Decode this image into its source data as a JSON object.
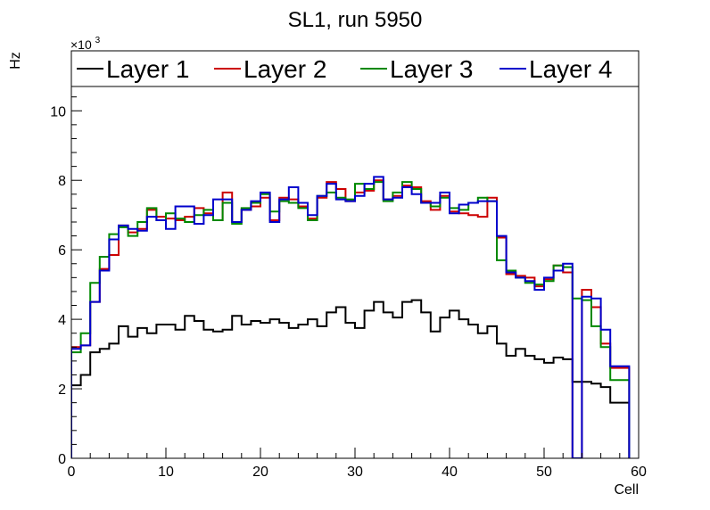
{
  "chart_data": {
    "type": "line",
    "title": "SL1, run 5950",
    "xlabel": "Cell",
    "ylabel": "Hz",
    "y_multiplier_base": "×10",
    "y_multiplier_exp": "3",
    "xlim": [
      0,
      60
    ],
    "ylim": [
      0,
      10.7
    ],
    "x_ticks": [
      0,
      10,
      20,
      30,
      40,
      50,
      60
    ],
    "y_ticks": [
      0,
      2,
      4,
      6,
      8,
      10
    ],
    "legend_position": "top",
    "bin_width": 1,
    "series": [
      {
        "name": "Layer 1",
        "color": "#000000",
        "values": [
          2.1,
          2.4,
          3.05,
          3.15,
          3.3,
          3.8,
          3.5,
          3.75,
          3.6,
          3.85,
          3.85,
          3.7,
          4.1,
          3.95,
          3.7,
          3.65,
          3.7,
          4.1,
          3.85,
          3.95,
          3.9,
          4.0,
          3.9,
          3.75,
          3.85,
          4.0,
          3.8,
          4.2,
          4.35,
          3.9,
          3.75,
          4.25,
          4.5,
          4.2,
          4.05,
          4.5,
          4.55,
          4.2,
          3.65,
          4.05,
          4.25,
          4.0,
          3.85,
          3.6,
          3.8,
          3.3,
          2.95,
          3.15,
          2.95,
          2.85,
          2.75,
          2.9,
          2.85,
          2.2,
          2.2,
          2.15,
          2.05,
          1.6,
          1.6
        ]
      },
      {
        "name": "Layer 2",
        "color": "#cc0000",
        "values": [
          3.2,
          3.25,
          4.5,
          5.45,
          5.85,
          6.7,
          6.5,
          6.6,
          7.15,
          6.95,
          6.9,
          6.85,
          6.95,
          7.2,
          7.05,
          6.85,
          7.65,
          6.8,
          7.15,
          7.25,
          7.5,
          6.85,
          7.5,
          7.45,
          7.25,
          6.9,
          7.5,
          7.95,
          7.75,
          7.4,
          7.65,
          7.7,
          8.0,
          7.45,
          7.55,
          7.85,
          7.8,
          7.4,
          7.15,
          7.55,
          7.1,
          7.05,
          7.0,
          6.95,
          7.5,
          6.35,
          5.3,
          5.25,
          5.2,
          4.95,
          5.15,
          5.55,
          5.35,
          0.0,
          4.85,
          4.35,
          3.3,
          2.6,
          2.6
        ]
      },
      {
        "name": "Layer 3",
        "color": "#008800",
        "values": [
          3.05,
          3.6,
          5.05,
          5.8,
          6.45,
          6.65,
          6.4,
          6.8,
          7.2,
          6.85,
          7.05,
          6.9,
          6.8,
          7.0,
          7.15,
          6.85,
          7.35,
          6.75,
          7.2,
          7.35,
          7.6,
          7.1,
          7.4,
          7.35,
          7.2,
          6.85,
          7.55,
          7.65,
          7.5,
          7.45,
          7.9,
          7.75,
          7.95,
          7.4,
          7.65,
          7.95,
          7.75,
          7.35,
          7.25,
          7.5,
          7.2,
          7.15,
          7.35,
          7.5,
          7.4,
          5.7,
          5.4,
          5.2,
          5.05,
          5.0,
          5.1,
          5.55,
          5.5,
          4.6,
          4.55,
          3.8,
          3.2,
          2.25,
          2.25
        ]
      },
      {
        "name": "Layer 4",
        "color": "#0000cc",
        "values": [
          3.15,
          3.25,
          4.5,
          5.4,
          6.3,
          6.7,
          6.6,
          6.55,
          6.95,
          6.85,
          6.6,
          7.25,
          7.25,
          6.75,
          7.0,
          7.45,
          7.45,
          6.8,
          7.15,
          7.4,
          7.65,
          6.8,
          7.45,
          7.8,
          7.35,
          7.0,
          7.55,
          7.9,
          7.45,
          7.4,
          7.55,
          7.9,
          8.1,
          7.45,
          7.5,
          7.8,
          7.6,
          7.35,
          7.35,
          7.65,
          7.05,
          7.3,
          7.35,
          7.4,
          7.4,
          6.4,
          5.35,
          5.2,
          5.1,
          4.85,
          5.2,
          5.4,
          5.6,
          0.0,
          4.65,
          4.6,
          3.7,
          2.65,
          2.65
        ]
      }
    ]
  }
}
